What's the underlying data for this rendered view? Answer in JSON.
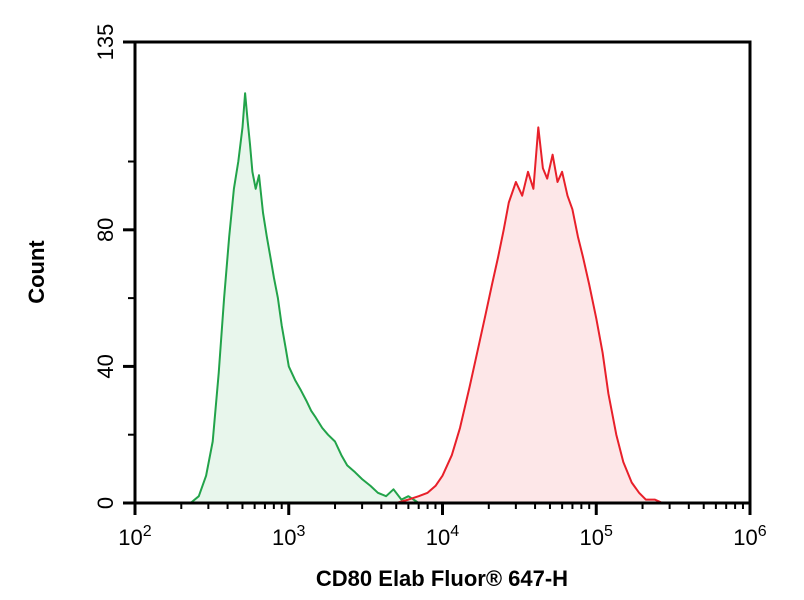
{
  "chart_data": {
    "type": "area",
    "title": "",
    "xlabel": "CD80 Elab Fluor® 647-H",
    "ylabel": "Count",
    "x_scale": "log",
    "xlim": [
      100,
      1000000
    ],
    "ylim": [
      0,
      135
    ],
    "x_ticks": [
      {
        "value": 100,
        "base": "10",
        "exp": "2"
      },
      {
        "value": 1000,
        "base": "10",
        "exp": "3"
      },
      {
        "value": 10000,
        "base": "10",
        "exp": "4"
      },
      {
        "value": 100000,
        "base": "10",
        "exp": "5"
      },
      {
        "value": 1000000,
        "base": "10",
        "exp": "6"
      }
    ],
    "y_ticks": [
      {
        "value": 0,
        "label": "0"
      },
      {
        "value": 40,
        "label": "40"
      },
      {
        "value": 80,
        "label": "80"
      },
      {
        "value": 135,
        "label": "135"
      }
    ],
    "grid": false,
    "legend": "none",
    "series": [
      {
        "color": "#22a34a",
        "fill": "#e8f6ec",
        "x": [
          230,
          260,
          290,
          320,
          350,
          380,
          410,
          440,
          470,
          500,
          520,
          540,
          560,
          580,
          610,
          640,
          680,
          720,
          760,
          800,
          850,
          900,
          950,
          1000,
          1100,
          1200,
          1300,
          1400,
          1500,
          1650,
          1800,
          2000,
          2200,
          2400,
          2700,
          3000,
          3400,
          3800,
          4300,
          4800,
          5400,
          6000,
          7000,
          8000
        ],
        "y": [
          0,
          2,
          8,
          18,
          38,
          60,
          78,
          92,
          100,
          110,
          120,
          112,
          105,
          97,
          92,
          96,
          85,
          78,
          72,
          66,
          60,
          52,
          46,
          40,
          36,
          33,
          30,
          27,
          25,
          22,
          20,
          18,
          14,
          11,
          9,
          7,
          5,
          3,
          2,
          4,
          1,
          2,
          0,
          0
        ]
      },
      {
        "color": "#e8202a",
        "fill": "#fde7e8",
        "x": [
          5000,
          6000,
          7000,
          8000,
          9000,
          10000,
          11500,
          13000,
          15000,
          17000,
          19000,
          21000,
          23000,
          25000,
          27000,
          30000,
          33000,
          36000,
          39000,
          42000,
          45000,
          48000,
          52000,
          56000,
          60000,
          65000,
          70000,
          76000,
          82000,
          90000,
          100000,
          110000,
          120000,
          135000,
          150000,
          170000,
          190000,
          210000,
          240000,
          270000,
          300000
        ],
        "y": [
          0,
          1,
          2,
          3,
          5,
          8,
          14,
          22,
          34,
          45,
          55,
          64,
          72,
          80,
          88,
          94,
          90,
          97,
          92,
          110,
          98,
          95,
          102,
          94,
          97,
          90,
          86,
          78,
          72,
          64,
          54,
          44,
          32,
          20,
          12,
          6,
          3,
          1,
          1,
          0,
          0
        ]
      }
    ]
  }
}
